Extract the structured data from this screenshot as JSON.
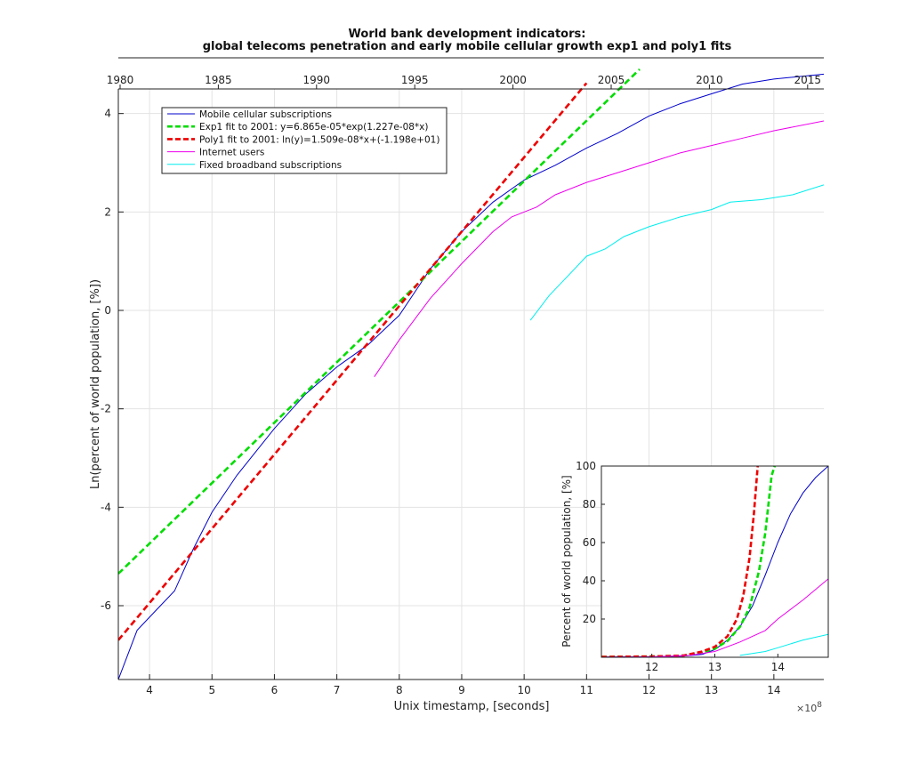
{
  "chart_data": [
    {
      "id": "main",
      "type": "line",
      "title_lines": [
        "World bank development indicators:",
        "global telecoms penetration and early mobile cellular growth exp1 and poly1 fits"
      ],
      "xlabel": "Unix timestamp, [seconds]",
      "ylabel": "Ln(percent of world population, [%])",
      "x_exponent_label": "×10",
      "x_exponent_power": "8",
      "xlim": [
        3.5,
        14.8
      ],
      "ylim": [
        -7.5,
        4.5
      ],
      "xticks": [
        4,
        5,
        6,
        7,
        8,
        9,
        10,
        11,
        12,
        13,
        14
      ],
      "yticks": [
        -6,
        -4,
        -2,
        0,
        2,
        4
      ],
      "grid": true,
      "top_axis_years": [
        "1980",
        "1985",
        "1990",
        "1995",
        "2000",
        "2005",
        "2010",
        "2015"
      ],
      "legend_position": "upper-left",
      "series": [
        {
          "name": "Mobile cellular subscriptions",
          "color": "#0000cc",
          "style": "solid",
          "points": [
            [
              3.5,
              -7.5
            ],
            [
              3.8,
              -6.5
            ],
            [
              4.1,
              -6.1
            ],
            [
              4.4,
              -5.7
            ],
            [
              4.7,
              -4.85
            ],
            [
              5.0,
              -4.1
            ],
            [
              5.4,
              -3.35
            ],
            [
              6.0,
              -2.4
            ],
            [
              6.5,
              -1.7
            ],
            [
              7.0,
              -1.15
            ],
            [
              7.5,
              -0.7
            ],
            [
              8.0,
              -0.1
            ],
            [
              8.5,
              0.85
            ],
            [
              9.0,
              1.6
            ],
            [
              9.5,
              2.2
            ],
            [
              10.0,
              2.65
            ],
            [
              10.5,
              2.95
            ],
            [
              11.0,
              3.3
            ],
            [
              11.5,
              3.6
            ],
            [
              12.0,
              3.95
            ],
            [
              12.5,
              4.2
            ],
            [
              13.0,
              4.4
            ],
            [
              13.5,
              4.6
            ],
            [
              14.0,
              4.7
            ],
            [
              14.8,
              4.8
            ]
          ]
        },
        {
          "name": "Exp1 fit to 2001: y=6.865e-05*exp(1.227e-08*x)",
          "color": "#00dd00",
          "style": "dashed",
          "points": [
            [
              3.5,
              -5.35
            ],
            [
              11.85,
              4.9
            ]
          ]
        },
        {
          "name": "Poly1 fit to 2001: ln(y)=1.509e-08*x+(-1.198e+01)",
          "color": "#ee0000",
          "style": "dashed",
          "points": [
            [
              3.5,
              -6.7
            ],
            [
              11.0,
              4.62
            ]
          ]
        },
        {
          "name": "Internet users",
          "color": "#ee00ee",
          "style": "solid",
          "points": [
            [
              7.6,
              -1.35
            ],
            [
              8.0,
              -0.6
            ],
            [
              8.5,
              0.25
            ],
            [
              9.0,
              0.95
            ],
            [
              9.5,
              1.6
            ],
            [
              9.8,
              1.9
            ],
            [
              10.2,
              2.1
            ],
            [
              10.5,
              2.35
            ],
            [
              11.0,
              2.6
            ],
            [
              11.5,
              2.8
            ],
            [
              12.0,
              3.0
            ],
            [
              12.5,
              3.2
            ],
            [
              13.0,
              3.35
            ],
            [
              13.5,
              3.5
            ],
            [
              14.0,
              3.65
            ],
            [
              14.8,
              3.85
            ]
          ]
        },
        {
          "name": "Fixed broadband subscriptions",
          "color": "#00eeee",
          "style": "solid",
          "points": [
            [
              10.1,
              -0.2
            ],
            [
              10.4,
              0.3
            ],
            [
              10.7,
              0.7
            ],
            [
              11.0,
              1.1
            ],
            [
              11.3,
              1.25
            ],
            [
              11.6,
              1.5
            ],
            [
              12.0,
              1.7
            ],
            [
              12.5,
              1.9
            ],
            [
              13.0,
              2.05
            ],
            [
              13.3,
              2.2
            ],
            [
              13.8,
              2.25
            ],
            [
              14.3,
              2.35
            ],
            [
              14.8,
              2.55
            ]
          ]
        }
      ]
    },
    {
      "id": "inset",
      "type": "line",
      "ylabel": "Percent of world population, [%]",
      "xlim": [
        11.2,
        14.8
      ],
      "ylim": [
        0,
        100
      ],
      "xticks": [
        12,
        13,
        14
      ],
      "yticks": [
        20,
        40,
        60,
        80,
        100
      ],
      "series": [
        {
          "name": "Mobile cellular subscriptions",
          "color": "#0000cc",
          "style": "solid",
          "points": [
            [
              11.2,
              0.2
            ],
            [
              12.0,
              0.3
            ],
            [
              12.5,
              0.6
            ],
            [
              12.8,
              1.5
            ],
            [
              13.0,
              4
            ],
            [
              13.2,
              9
            ],
            [
              13.4,
              16
            ],
            [
              13.6,
              27
            ],
            [
              13.8,
              43
            ],
            [
              14.0,
              60
            ],
            [
              14.2,
              75
            ],
            [
              14.4,
              86
            ],
            [
              14.6,
              94
            ],
            [
              14.8,
              100
            ]
          ]
        },
        {
          "name": "Exp1 fit",
          "color": "#00dd00",
          "style": "dashed",
          "points": [
            [
              11.2,
              0.2
            ],
            [
              12.0,
              0.4
            ],
            [
              12.5,
              0.9
            ],
            [
              12.8,
              2.5
            ],
            [
              13.0,
              4.5
            ],
            [
              13.2,
              8.5
            ],
            [
              13.4,
              16
            ],
            [
              13.55,
              26
            ],
            [
              13.7,
              45
            ],
            [
              13.8,
              65
            ],
            [
              13.9,
              95
            ],
            [
              13.95,
              100
            ]
          ]
        },
        {
          "name": "Poly1 fit",
          "color": "#ee0000",
          "style": "dashed",
          "points": [
            [
              11.2,
              0.2
            ],
            [
              12.0,
              0.4
            ],
            [
              12.5,
              0.9
            ],
            [
              12.8,
              3
            ],
            [
              13.0,
              5.5
            ],
            [
              13.2,
              11
            ],
            [
              13.35,
              20
            ],
            [
              13.45,
              32
            ],
            [
              13.55,
              52
            ],
            [
              13.62,
              75
            ],
            [
              13.68,
              100
            ]
          ]
        },
        {
          "name": "Internet users",
          "color": "#ee00ee",
          "style": "solid",
          "points": [
            [
              11.2,
              0.0
            ],
            [
              12.0,
              0.2
            ],
            [
              12.6,
              1
            ],
            [
              13.0,
              3
            ],
            [
              13.4,
              8
            ],
            [
              13.8,
              14
            ],
            [
              14.0,
              20
            ],
            [
              14.4,
              30
            ],
            [
              14.8,
              41
            ]
          ]
        },
        {
          "name": "Fixed broadband subscriptions",
          "color": "#00eeee",
          "style": "solid",
          "points": [
            [
              13.4,
              1
            ],
            [
              13.8,
              3
            ],
            [
              14.0,
              5
            ],
            [
              14.4,
              9
            ],
            [
              14.8,
              12
            ]
          ]
        }
      ]
    }
  ]
}
